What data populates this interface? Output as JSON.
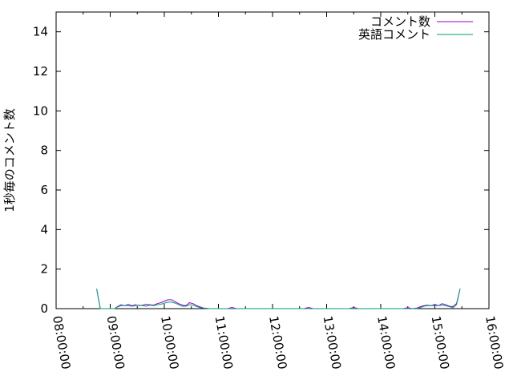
{
  "chart_data": {
    "type": "line",
    "title": "",
    "xlabel": "",
    "ylabel": "1秒毎のコメント数",
    "xlim": [
      "08:00:00",
      "16:00:00"
    ],
    "ylim": [
      0,
      15
    ],
    "x_ticks": [
      "08:00:00",
      "09:00:00",
      "10:00:00",
      "11:00:00",
      "12:00:00",
      "13:00:00",
      "14:00:00",
      "15:00:00",
      "16:00:00"
    ],
    "y_ticks": [
      0,
      2,
      4,
      6,
      8,
      10,
      12,
      14
    ],
    "grid": false,
    "legend": "top-right",
    "series": [
      {
        "name": "コメント数",
        "color": "#9400d3",
        "x": [
          "08:45",
          "08:49",
          "09:05",
          "09:08",
          "09:12",
          "09:16",
          "09:20",
          "09:24",
          "09:28",
          "09:32",
          "09:36",
          "09:40",
          "09:44",
          "09:48",
          "09:52",
          "09:56",
          "10:00",
          "10:04",
          "10:08",
          "10:12",
          "10:16",
          "10:20",
          "10:24",
          "10:28",
          "10:32",
          "10:36",
          "10:40",
          "10:44",
          "10:50",
          "11:10",
          "11:15",
          "11:20",
          "12:35",
          "12:40",
          "12:45",
          "13:25",
          "13:30",
          "13:35",
          "14:25",
          "14:30",
          "14:35",
          "14:40",
          "14:44",
          "14:48",
          "14:52",
          "14:56",
          "15:00",
          "15:04",
          "15:08",
          "15:12",
          "15:16",
          "15:20",
          "15:24",
          "15:28"
        ],
        "values": [
          1.0,
          0,
          0,
          0.1,
          0.2,
          0.15,
          0.22,
          0.15,
          0.2,
          0.15,
          0.18,
          0.22,
          0.2,
          0.18,
          0.25,
          0.3,
          0.38,
          0.45,
          0.45,
          0.35,
          0.25,
          0.18,
          0.15,
          0.3,
          0.25,
          0.15,
          0.08,
          0.03,
          0,
          0,
          0.06,
          0,
          0,
          0.06,
          0,
          0,
          0.06,
          0,
          0,
          0.05,
          0,
          0.03,
          0.1,
          0.15,
          0.18,
          0.15,
          0.22,
          0.15,
          0.25,
          0.2,
          0.12,
          0.1,
          0.25,
          1.0
        ]
      },
      {
        "name": "英語コメント",
        "color": "#009e73",
        "x": [
          "08:45",
          "08:49",
          "09:05",
          "09:08",
          "09:12",
          "09:16",
          "09:20",
          "09:24",
          "09:28",
          "09:32",
          "09:36",
          "09:40",
          "09:44",
          "09:48",
          "09:52",
          "09:56",
          "10:00",
          "10:04",
          "10:08",
          "10:12",
          "10:16",
          "10:20",
          "10:24",
          "10:28",
          "10:32",
          "10:36",
          "10:40",
          "10:44",
          "10:50",
          "14:40",
          "14:44",
          "14:48",
          "14:52",
          "14:56",
          "15:00",
          "15:04",
          "15:08",
          "15:12",
          "15:16",
          "15:20",
          "15:24",
          "15:28"
        ],
        "values": [
          1.0,
          0,
          0,
          0.08,
          0.15,
          0.15,
          0.15,
          0.12,
          0.15,
          0.18,
          0.15,
          0.12,
          0.18,
          0.15,
          0.2,
          0.22,
          0.28,
          0.33,
          0.33,
          0.28,
          0.2,
          0.12,
          0.12,
          0.2,
          0.18,
          0.1,
          0.05,
          0.02,
          0,
          0,
          0.05,
          0.12,
          0.15,
          0.15,
          0.15,
          0.15,
          0.18,
          0.15,
          0.1,
          0.05,
          0.2,
          1.0
        ]
      }
    ]
  }
}
